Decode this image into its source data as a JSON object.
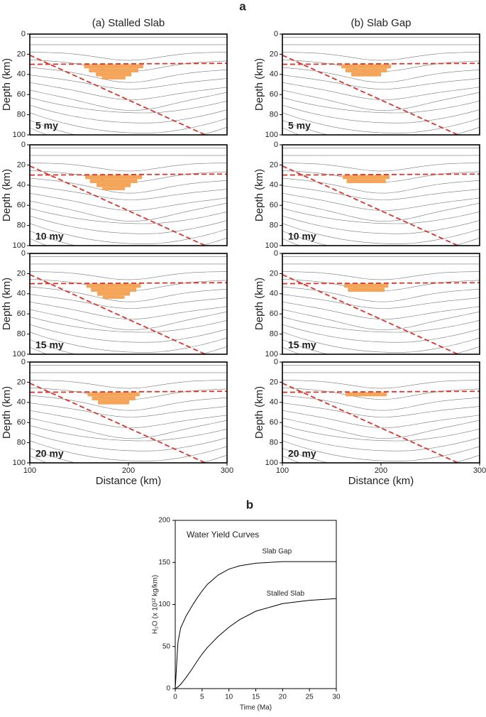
{
  "figure_labels": [
    "a",
    "b"
  ],
  "chart_data": [
    {
      "type": "contour",
      "title": "(a) Stalled Slab",
      "label": "5 my",
      "ylabel": "Depth (km)",
      "xlim": [
        100,
        300
      ],
      "ylim": [
        0,
        100
      ],
      "yticks": [
        0,
        20,
        40,
        60,
        80,
        100
      ],
      "series": [
        {
          "color": "#d9342b",
          "style": "dashed",
          "x": [
            100,
            278
          ],
          "values": [
            21,
            100
          ]
        },
        {
          "color": "#d9342b",
          "style": "dashed",
          "x": [
            100,
            300
          ],
          "values": [
            30,
            29
          ]
        }
      ]
    },
    {
      "type": "contour",
      "title": "(b) Slab Gap",
      "label": "5 my",
      "ylabel": "Depth (km)",
      "xlim": [
        100,
        300
      ],
      "ylim": [
        0,
        100
      ],
      "yticks": [
        0,
        20,
        40,
        60,
        80,
        100
      ],
      "series": [
        {
          "color": "#d9342b",
          "style": "dashed",
          "x": [
            100,
            278
          ],
          "values": [
            21,
            100
          ]
        },
        {
          "color": "#d9342b",
          "style": "dashed",
          "x": [
            100,
            300
          ],
          "values": [
            30,
            29
          ]
        }
      ]
    },
    {
      "type": "contour",
      "label": "10 my",
      "ylabel": "Depth (km)",
      "xlim": [
        100,
        300
      ],
      "ylim": [
        0,
        100
      ],
      "yticks": [
        0,
        20,
        40,
        60,
        80,
        100
      ],
      "series": [
        {
          "color": "#d9342b",
          "style": "dashed",
          "x": [
            100,
            278
          ],
          "values": [
            21,
            100
          ]
        },
        {
          "color": "#d9342b",
          "style": "dashed",
          "x": [
            100,
            300
          ],
          "values": [
            30,
            29
          ]
        }
      ]
    },
    {
      "type": "contour",
      "label": "10 my",
      "ylabel": "Depth (km)",
      "xlim": [
        100,
        300
      ],
      "ylim": [
        0,
        100
      ],
      "yticks": [
        0,
        20,
        40,
        60,
        80,
        100
      ],
      "series": [
        {
          "color": "#d9342b",
          "style": "dashed",
          "x": [
            100,
            278
          ],
          "values": [
            21,
            100
          ]
        },
        {
          "color": "#d9342b",
          "style": "dashed",
          "x": [
            100,
            300
          ],
          "values": [
            30,
            29
          ]
        }
      ]
    },
    {
      "type": "contour",
      "label": "15 my",
      "ylabel": "Depth (km)",
      "xlim": [
        100,
        300
      ],
      "ylim": [
        0,
        100
      ],
      "yticks": [
        0,
        20,
        40,
        60,
        80,
        100
      ],
      "series": [
        {
          "color": "#d9342b",
          "style": "dashed",
          "x": [
            100,
            278
          ],
          "values": [
            21,
            100
          ]
        },
        {
          "color": "#d9342b",
          "style": "dashed",
          "x": [
            100,
            300
          ],
          "values": [
            30,
            29
          ]
        }
      ]
    },
    {
      "type": "contour",
      "label": "15 my",
      "ylabel": "Depth (km)",
      "xlim": [
        100,
        300
      ],
      "ylim": [
        0,
        100
      ],
      "yticks": [
        0,
        20,
        40,
        60,
        80,
        100
      ],
      "series": [
        {
          "color": "#d9342b",
          "style": "dashed",
          "x": [
            100,
            278
          ],
          "values": [
            21,
            100
          ]
        },
        {
          "color": "#d9342b",
          "style": "dashed",
          "x": [
            100,
            300
          ],
          "values": [
            30,
            29
          ]
        }
      ]
    },
    {
      "type": "contour",
      "label": "20 my",
      "ylabel": "Depth (km)",
      "xlabel": "Distance (km)",
      "xlim": [
        100,
        300
      ],
      "ylim": [
        0,
        100
      ],
      "xticks": [
        100,
        200,
        300
      ],
      "yticks": [
        0,
        20,
        40,
        60,
        80,
        100
      ],
      "series": [
        {
          "color": "#d9342b",
          "style": "dashed",
          "x": [
            100,
            278
          ],
          "values": [
            21,
            100
          ]
        },
        {
          "color": "#d9342b",
          "style": "dashed",
          "x": [
            100,
            300
          ],
          "values": [
            30,
            29
          ]
        }
      ]
    },
    {
      "type": "contour",
      "label": "20 my",
      "ylabel": "Depth (km)",
      "xlabel": "Distance (km)",
      "xlim": [
        100,
        300
      ],
      "ylim": [
        0,
        100
      ],
      "xticks": [
        100,
        200,
        300
      ],
      "yticks": [
        0,
        20,
        40,
        60,
        80,
        100
      ],
      "series": [
        {
          "color": "#d9342b",
          "style": "dashed",
          "x": [
            100,
            278
          ],
          "values": [
            21,
            100
          ]
        },
        {
          "color": "#d9342b",
          "style": "dashed",
          "x": [
            100,
            300
          ],
          "values": [
            30,
            29
          ]
        }
      ]
    },
    {
      "type": "line",
      "title": "Water Yield Curves",
      "xlabel": "Time (Ma)",
      "ylabel": "H₂O (x 10¹² kg/km)",
      "xlim": [
        0,
        30
      ],
      "ylim": [
        0,
        200
      ],
      "xticks": [
        0,
        5,
        10,
        15,
        20,
        25,
        30
      ],
      "yticks": [
        0,
        50,
        100,
        150,
        200
      ],
      "series": [
        {
          "name": "Slab Gap",
          "color": "#000000",
          "x": [
            0,
            0.5,
            1,
            2,
            3,
            4,
            5,
            6,
            8,
            10,
            12,
            15,
            20,
            25,
            30
          ],
          "values": [
            0,
            55,
            72,
            86,
            97,
            107,
            116,
            124,
            135,
            142,
            146,
            149,
            151,
            151,
            151
          ]
        },
        {
          "name": "Stalled Slab",
          "color": "#000000",
          "x": [
            0,
            0.5,
            1,
            2,
            3,
            4,
            5,
            6,
            8,
            10,
            12,
            15,
            20,
            25,
            30
          ],
          "values": [
            0,
            2,
            5,
            13,
            22,
            32,
            41,
            49,
            62,
            73,
            82,
            92,
            101,
            105,
            107
          ]
        }
      ]
    }
  ]
}
